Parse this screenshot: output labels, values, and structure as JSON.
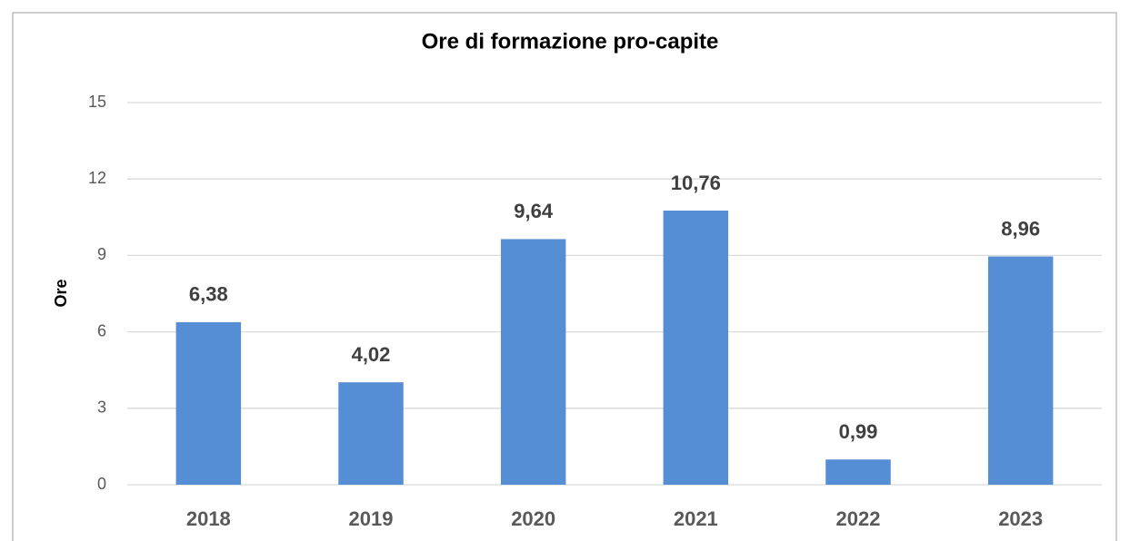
{
  "chart_data": {
    "type": "bar",
    "title": "Ore di formazione pro-capite",
    "y_label": "Ore",
    "categories": [
      "2018",
      "2019",
      "2020",
      "2021",
      "2022",
      "2023"
    ],
    "values": [
      6.38,
      4.02,
      9.64,
      10.76,
      0.99,
      8.96
    ],
    "value_labels": [
      "6,38",
      "4,02",
      "9,64",
      "10,76",
      "0,99",
      "8,96"
    ],
    "color": "#558ed5",
    "ylim": [
      0,
      15
    ],
    "yticks": [
      0,
      3,
      6,
      9,
      12,
      15
    ],
    "grid": true
  }
}
